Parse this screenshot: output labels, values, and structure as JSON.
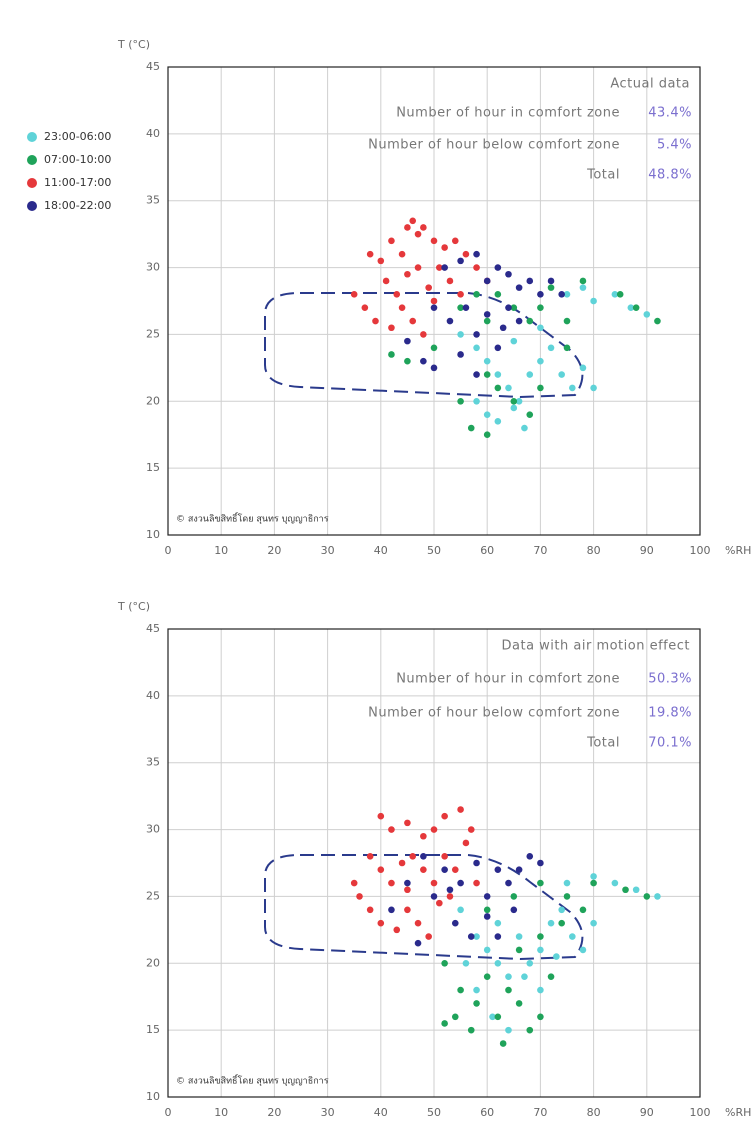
{
  "chart_data": [
    {
      "type": "scatter",
      "ylabel": "T (°C)",
      "xlabel": "%RH",
      "xlim": [
        0,
        100
      ],
      "ylim": [
        10,
        45
      ],
      "xticks": [
        0,
        10,
        20,
        30,
        40,
        50,
        60,
        70,
        80,
        90,
        100
      ],
      "yticks": [
        10,
        15,
        20,
        25,
        30,
        35,
        40,
        45
      ],
      "grid": true,
      "info_box": {
        "title": "Actual data",
        "rows": [
          {
            "label": "Number of hour in comfort zone",
            "value": "43.4%"
          },
          {
            "label": "Number of hour below comfort zone",
            "value": "5.4%"
          },
          {
            "label": "Total",
            "value": "48.8%"
          }
        ]
      },
      "copyright": "© สงวนลิขสิทธิ์โดย สุนทร บุญญาธิการ",
      "series": [
        {
          "name": "23:00-06:00",
          "color": "#5fd3d8",
          "x": [
            55,
            58,
            60,
            62,
            64,
            66,
            68,
            70,
            72,
            74,
            76,
            78,
            80,
            58,
            60,
            62,
            65,
            67,
            75,
            78,
            80,
            84,
            87,
            90,
            65,
            70
          ],
          "values": [
            25,
            24,
            23,
            22,
            21,
            20,
            22,
            23,
            24,
            22,
            21,
            22.5,
            21,
            20,
            19,
            18.5,
            19.5,
            18,
            28,
            28.5,
            27.5,
            28,
            27,
            26.5,
            24.5,
            25.5
          ]
        },
        {
          "name": "07:00-10:00",
          "color": "#1fa35a",
          "x": [
            55,
            58,
            60,
            62,
            65,
            68,
            70,
            72,
            75,
            78,
            85,
            88,
            92,
            60,
            62,
            65,
            68,
            57,
            60,
            55,
            70,
            50,
            45,
            42,
            75
          ],
          "values": [
            27,
            28,
            26,
            28,
            27,
            26,
            27,
            28.5,
            26,
            29,
            28,
            27,
            26,
            22,
            21,
            20,
            19,
            18,
            17.5,
            20,
            21,
            24,
            23,
            23.5,
            24
          ]
        },
        {
          "name": "11:00-17:00",
          "color": "#e5383b",
          "x": [
            38,
            40,
            42,
            44,
            45,
            46,
            47,
            48,
            50,
            52,
            54,
            41,
            43,
            45,
            47,
            49,
            51,
            53,
            56,
            58,
            35,
            37,
            39,
            42,
            44,
            46,
            48,
            50,
            55,
            60
          ],
          "values": [
            31,
            30.5,
            32,
            31,
            33,
            33.5,
            32.5,
            33,
            32,
            31.5,
            32,
            29,
            28,
            29.5,
            30,
            28.5,
            30,
            29,
            31,
            30,
            28,
            27,
            26,
            25.5,
            27,
            26,
            25,
            27.5,
            28,
            29
          ]
        },
        {
          "name": "18:00-22:00",
          "color": "#2a2a8c",
          "x": [
            52,
            55,
            58,
            60,
            62,
            64,
            66,
            68,
            70,
            72,
            74,
            50,
            53,
            56,
            58,
            60,
            62,
            64,
            45,
            48,
            50,
            55,
            58,
            63,
            66
          ],
          "values": [
            30,
            30.5,
            31,
            29,
            30,
            29.5,
            28.5,
            29,
            28,
            29,
            28,
            27,
            26,
            27,
            25,
            26.5,
            24,
            27,
            24.5,
            23,
            22.5,
            23.5,
            22,
            25.5,
            26
          ]
        }
      ]
    },
    {
      "type": "scatter",
      "ylabel": "T (°C)",
      "xlabel": "%RH",
      "xlim": [
        0,
        100
      ],
      "ylim": [
        10,
        45
      ],
      "xticks": [
        0,
        10,
        20,
        30,
        40,
        50,
        60,
        70,
        80,
        90,
        100
      ],
      "yticks": [
        10,
        15,
        20,
        25,
        30,
        35,
        40,
        45
      ],
      "grid": true,
      "info_box": {
        "title": "Data with air motion effect",
        "rows": [
          {
            "label": "Number of hour in comfort zone",
            "value": "50.3%"
          },
          {
            "label": "Number of hour below comfort zone",
            "value": "19.8%"
          },
          {
            "label": "Total",
            "value": "70.1%"
          }
        ]
      },
      "copyright": "© สงวนลิขสิทธิ์โดย สุนทร บุญญาธิการ",
      "series": [
        {
          "color": "#5fd3d8",
          "x": [
            55,
            58,
            60,
            62,
            64,
            66,
            68,
            70,
            72,
            74,
            76,
            78,
            80,
            58,
            61,
            64,
            67,
            70,
            75,
            80,
            84,
            88,
            92,
            62,
            56,
            73
          ],
          "values": [
            24,
            22,
            21,
            20,
            19,
            22,
            20,
            21,
            23,
            24,
            22,
            21,
            23,
            18,
            16,
            15,
            19,
            18,
            26,
            26.5,
            26,
            25.5,
            25,
            23,
            20,
            20.5
          ]
        },
        {
          "color": "#1fa35a",
          "x": [
            52,
            55,
            58,
            60,
            62,
            64,
            66,
            68,
            70,
            72,
            54,
            57,
            63,
            66,
            70,
            74,
            78,
            80,
            86,
            90,
            60,
            65,
            70,
            75,
            52
          ],
          "values": [
            20,
            18,
            17,
            19,
            16,
            18,
            17,
            15,
            16,
            19,
            16,
            15,
            14,
            21,
            22,
            23,
            24,
            26,
            25.5,
            25,
            24,
            25,
            26,
            25,
            15.5
          ]
        },
        {
          "color": "#e5383b",
          "x": [
            40,
            42,
            45,
            48,
            50,
            52,
            55,
            57,
            38,
            40,
            42,
            44,
            46,
            48,
            50,
            52,
            54,
            56,
            36,
            38,
            40,
            43,
            45,
            47,
            49,
            51,
            53,
            58,
            35,
            45
          ],
          "values": [
            31,
            30,
            30.5,
            29.5,
            30,
            31,
            31.5,
            30,
            28,
            27,
            26,
            27.5,
            28,
            27,
            26,
            28,
            27,
            29,
            25,
            24,
            23,
            22.5,
            24,
            23,
            22,
            24.5,
            25,
            26,
            26,
            25.5
          ]
        },
        {
          "color": "#2a2a8c",
          "x": [
            42,
            45,
            48,
            50,
            52,
            55,
            58,
            60,
            62,
            64,
            66,
            68,
            70,
            54,
            57,
            60,
            62,
            65,
            53,
            47
          ],
          "values": [
            24,
            26,
            28,
            25,
            27,
            26,
            27.5,
            25,
            27,
            26,
            27,
            28,
            27.5,
            23,
            22,
            23.5,
            22,
            24,
            25.5,
            21.5
          ]
        }
      ]
    }
  ]
}
